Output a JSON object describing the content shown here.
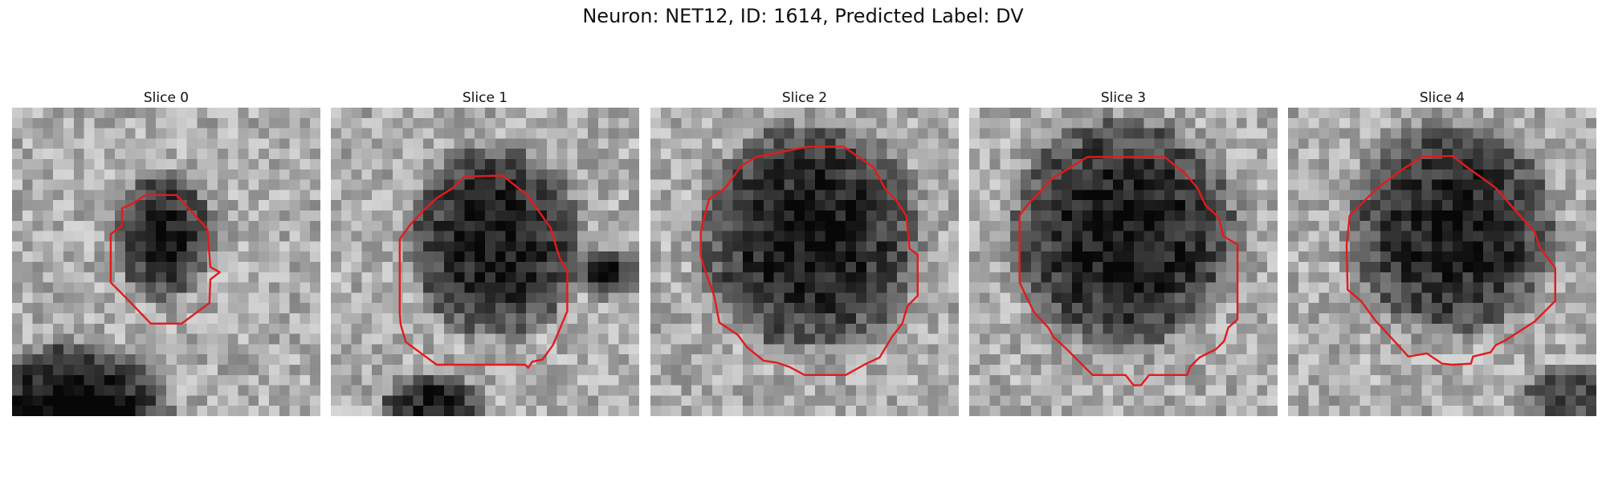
{
  "figure": {
    "title": "Neuron: NET12, ID: 1614, Predicted Label: DV",
    "contour_color": "#e41a1c",
    "background_color": "#ffffff"
  },
  "panels": [
    {
      "label": "Slice 0"
    },
    {
      "label": "Slice 1"
    },
    {
      "label": "Slice 2"
    },
    {
      "label": "Slice 3"
    },
    {
      "label": "Slice 4"
    }
  ]
}
